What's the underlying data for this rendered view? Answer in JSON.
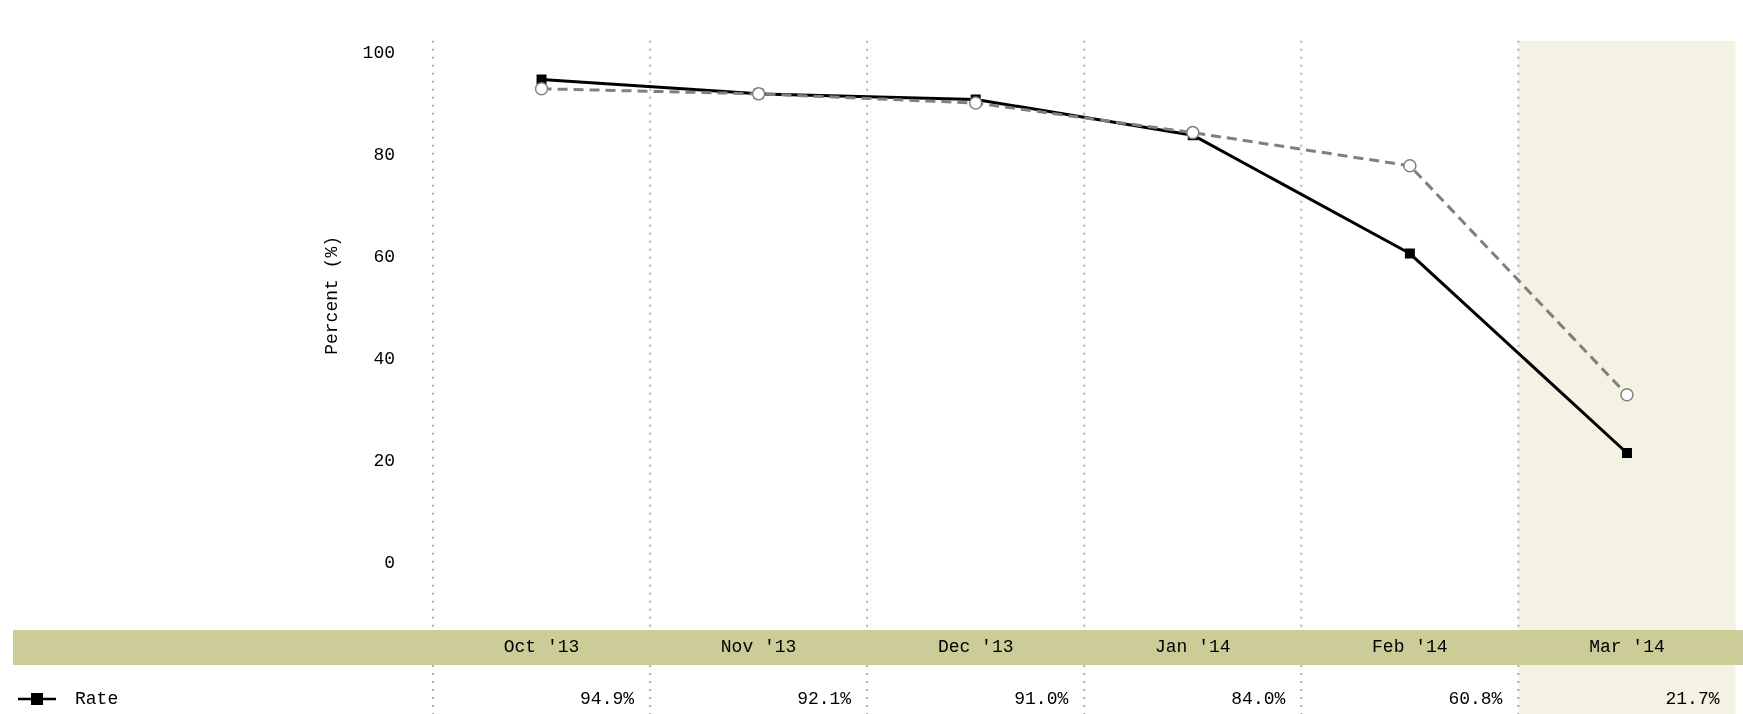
{
  "chart_data": {
    "type": "line",
    "ylabel": "Percent (%)",
    "categories": [
      "Oct '13",
      "Nov '13",
      "Dec '13",
      "Jan '14",
      "Feb '14",
      "Mar '14"
    ],
    "series": [
      {
        "name": "Rate",
        "color": "#000000",
        "marker": "square",
        "line_style": "solid",
        "values": [
          94.9,
          92.1,
          91.0,
          84.0,
          60.8,
          21.7
        ],
        "value_labels": [
          "94.9%",
          "92.1%",
          "91.0%",
          "84.0%",
          "60.8%",
          "21.7%"
        ]
      },
      {
        "color": "#808080",
        "marker": "circle",
        "line_style": "dashed",
        "values": [
          93.1,
          92.1,
          90.3,
          84.5,
          78.0,
          33.1
        ]
      }
    ],
    "ylim": [
      -13,
      102.5
    ],
    "yticks": [
      0,
      20,
      40,
      60,
      80,
      100
    ],
    "grid": "x",
    "legend": "bottom left",
    "bands": [
      {
        "axis": "x",
        "from": "Mar '14",
        "to": "Mar '14",
        "color": "#f4f2e2"
      }
    ]
  }
}
